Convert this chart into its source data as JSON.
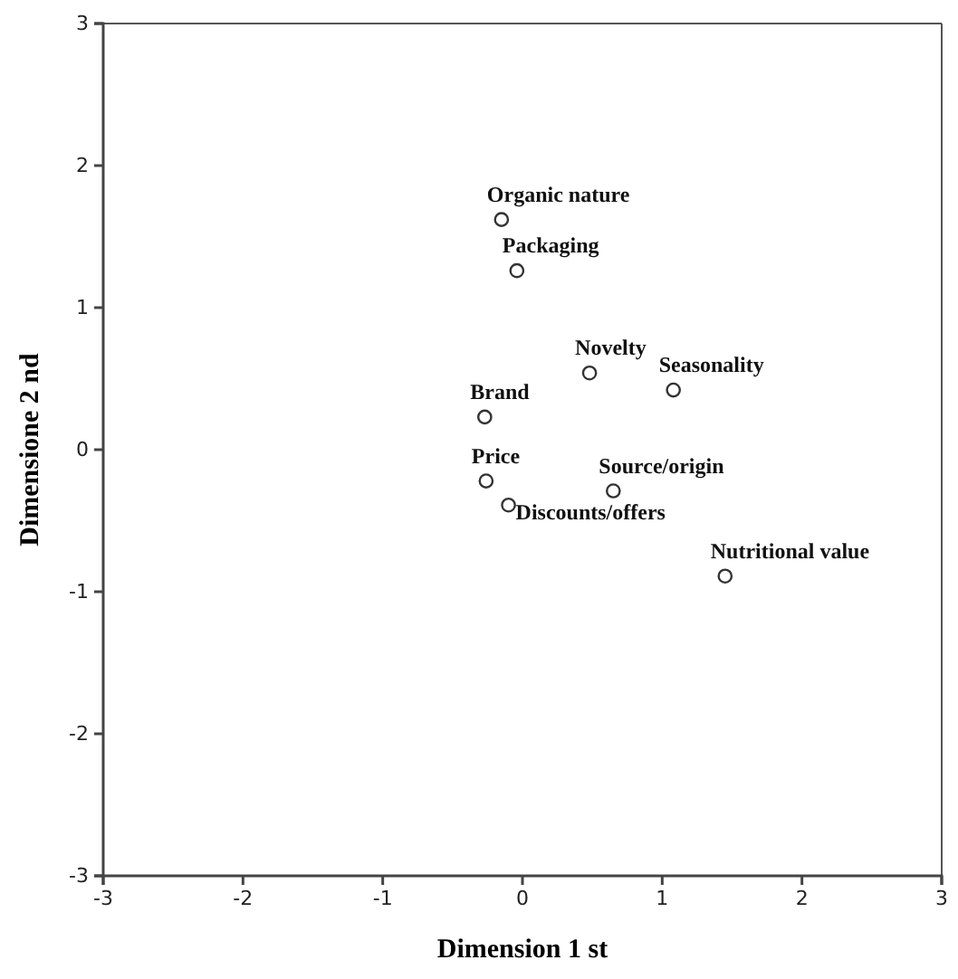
{
  "chart_data": {
    "type": "scatter",
    "xlabel": "Dimension 1 st",
    "ylabel": "Dimensione 2 nd",
    "x": [
      -0.15,
      -0.04,
      0.48,
      1.08,
      -0.27,
      -0.26,
      0.65,
      -0.1,
      1.45
    ],
    "values": [
      1.62,
      1.26,
      0.54,
      0.42,
      0.23,
      -0.22,
      -0.29,
      -0.39,
      -0.89
    ],
    "color": "#333333",
    "marker": "circle",
    "xlim": [
      -3,
      3
    ],
    "ylim": [
      -3,
      3
    ],
    "xticks": [
      -3,
      -2,
      -1,
      0,
      1,
      2,
      3
    ],
    "yticks": [
      -3,
      -2,
      -1,
      0,
      1,
      2,
      3
    ],
    "grid": false,
    "annotations": [
      {
        "text": "Organic nature",
        "x": -0.15,
        "y": 1.62
      },
      {
        "text": "Packaging",
        "x": -0.04,
        "y": 1.26
      },
      {
        "text": "Novelty",
        "x": 0.48,
        "y": 0.54
      },
      {
        "text": "Seasonality",
        "x": 1.08,
        "y": 0.42
      },
      {
        "text": "Brand",
        "x": -0.27,
        "y": 0.23
      },
      {
        "text": "Price",
        "x": -0.26,
        "y": -0.22
      },
      {
        "text": "Source/origin",
        "x": 0.65,
        "y": -0.29
      },
      {
        "text": "Discounts/offers",
        "x": -0.1,
        "y": -0.39
      },
      {
        "text": "Nutritional value",
        "x": 1.45,
        "y": -0.89
      }
    ]
  }
}
